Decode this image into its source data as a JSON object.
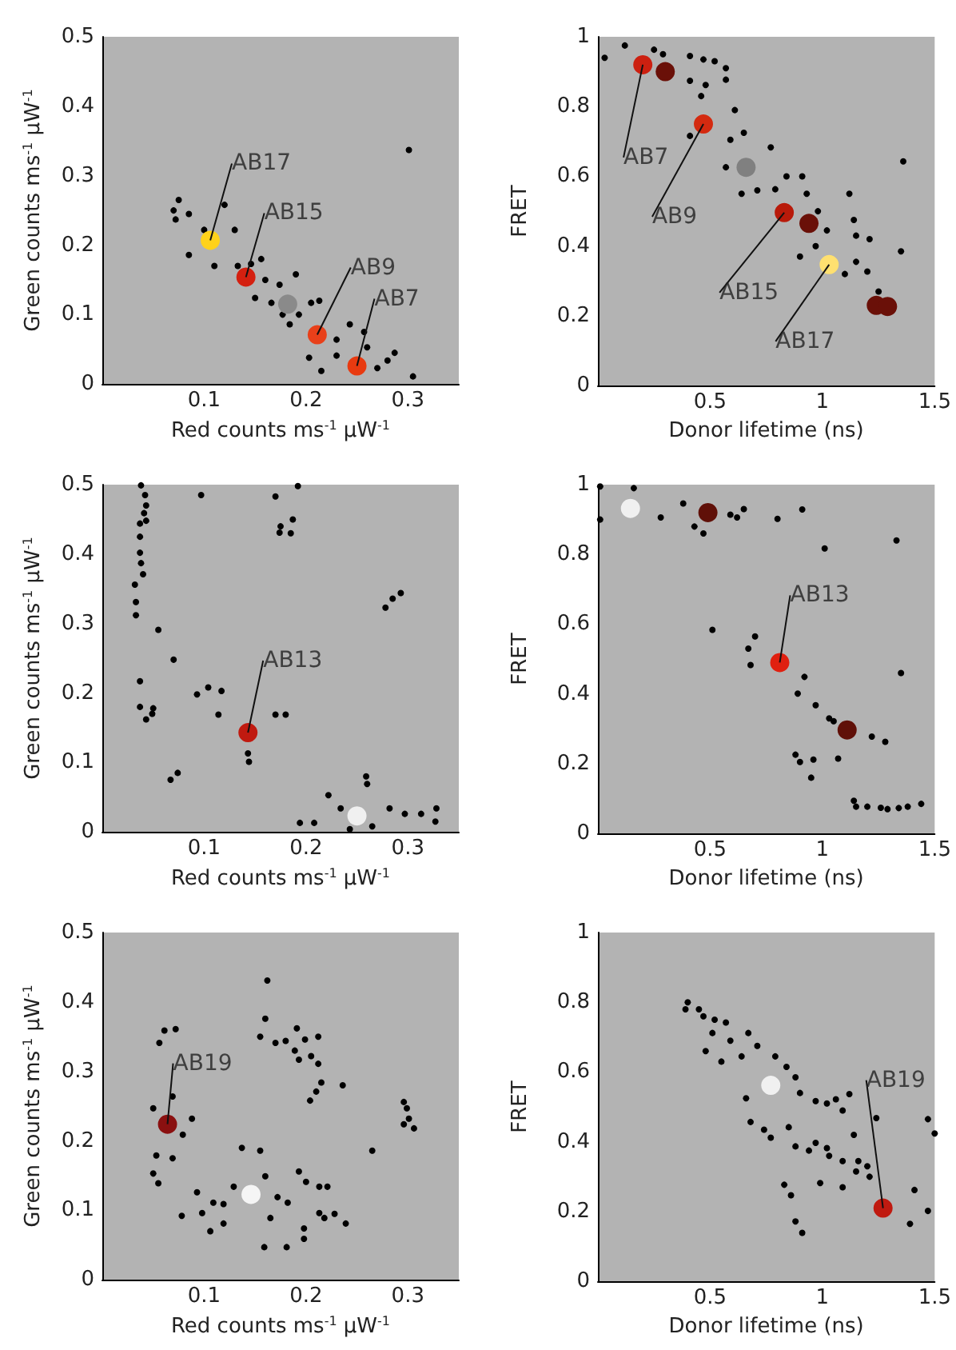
{
  "chart_data": [
    {
      "type": "scatter",
      "xlabel": "Red counts ms$^{-1}$ µW$^{-1}$",
      "ylabel": "Green counts ms$^{-1}$ µW$^{-1}$",
      "xlim": [
        0,
        0.35
      ],
      "ylim": [
        0,
        0.5
      ],
      "xticks": [
        0.1,
        0.2,
        0.3
      ],
      "yticks": [
        0,
        0.1,
        0.2,
        0.3,
        0.4,
        0.5
      ],
      "grid": false,
      "marker": "circle",
      "series": [
        {
          "color": "#000000",
          "x": [
            0.075,
            0.07,
            0.072,
            0.085,
            0.1,
            0.12,
            0.13,
            0.085,
            0.11,
            0.133,
            0.146,
            0.156,
            0.16,
            0.174,
            0.19,
            0.15,
            0.166,
            0.205,
            0.213,
            0.193,
            0.177,
            0.184,
            0.23,
            0.243,
            0.257,
            0.203,
            0.215,
            0.23,
            0.26,
            0.28,
            0.287,
            0.27,
            0.305,
            0.301
          ],
          "values": [
            0.265,
            0.25,
            0.237,
            0.245,
            0.222,
            0.258,
            0.222,
            0.186,
            0.17,
            0.17,
            0.173,
            0.18,
            0.15,
            0.143,
            0.158,
            0.124,
            0.117,
            0.117,
            0.12,
            0.1,
            0.1,
            0.086,
            0.064,
            0.086,
            0.075,
            0.038,
            0.019,
            0.041,
            0.053,
            0.034,
            0.045,
            0.023,
            0.011,
            0.337
          ]
        },
        {
          "colors": [
            "#ffd21a",
            "#d42010",
            "#8a8a8a",
            "#e8401a",
            "#e83a10"
          ],
          "x": [
            0.106,
            0.141,
            0.182,
            0.211,
            0.25
          ],
          "values": [
            0.207,
            0.154,
            0.115,
            0.071,
            0.026
          ]
        }
      ],
      "annotations": [
        {
          "text": "AB17",
          "x": 0.106,
          "y": 0.207
        },
        {
          "text": "AB15",
          "x": 0.141,
          "y": 0.154
        },
        {
          "text": "AB9",
          "x": 0.211,
          "y": 0.071
        },
        {
          "text": "AB7",
          "x": 0.25,
          "y": 0.026
        }
      ]
    },
    {
      "type": "scatter",
      "xlabel": "Donor lifetime (ns)",
      "ylabel": "FRET",
      "xlim": [
        0,
        1.5
      ],
      "ylim": [
        0,
        1
      ],
      "xticks": [
        0.5,
        1,
        1.5
      ],
      "yticks": [
        0,
        0.2,
        0.4,
        0.6,
        0.8,
        1
      ],
      "grid": false,
      "marker": "circle",
      "series": [
        {
          "color": "#000000",
          "x": [
            0.03,
            0.12,
            0.25,
            0.29,
            0.41,
            0.47,
            0.52,
            0.57,
            0.41,
            0.48,
            0.57,
            0.46,
            0.61,
            0.41,
            0.59,
            0.65,
            0.77,
            0.57,
            0.64,
            0.71,
            0.79,
            0.84,
            0.91,
            0.93,
            0.98,
            1.12,
            1.14,
            1.15,
            1.21,
            1.02,
            0.9,
            1.1,
            1.2,
            1.25,
            1.36,
            1.35,
            0.97,
            1.15
          ],
          "values": [
            0.94,
            0.975,
            0.963,
            0.95,
            0.945,
            0.935,
            0.93,
            0.91,
            0.874,
            0.862,
            0.877,
            0.83,
            0.79,
            0.716,
            0.705,
            0.725,
            0.683,
            0.626,
            0.55,
            0.56,
            0.563,
            0.6,
            0.6,
            0.55,
            0.5,
            0.55,
            0.475,
            0.43,
            0.42,
            0.445,
            0.37,
            0.32,
            0.327,
            0.27,
            0.643,
            0.385,
            0.4,
            0.355
          ]
        },
        {
          "colors": [
            "#cc2010",
            "#d42a10",
            "#808080",
            "#b81a0a",
            "#ffe070",
            "#6a1008",
            "#6a1008",
            "#6a1008",
            "#6a1008"
          ],
          "x": [
            0.2,
            0.47,
            0.66,
            0.83,
            1.03,
            0.3,
            0.94,
            1.24,
            1.29
          ],
          "values": [
            0.92,
            0.75,
            0.626,
            0.496,
            0.347,
            0.9,
            0.465,
            0.23,
            0.227
          ]
        }
      ],
      "annotations": [
        {
          "text": "AB7",
          "x": 0.2,
          "y": 0.92
        },
        {
          "text": "AB9",
          "x": 0.47,
          "y": 0.75
        },
        {
          "text": "AB15",
          "x": 0.83,
          "y": 0.496
        },
        {
          "text": "AB17",
          "x": 1.03,
          "y": 0.347
        }
      ]
    },
    {
      "type": "scatter",
      "xlabel": "Red counts ms$^{-1}$ µW$^{-1}$",
      "ylabel": "Green counts ms$^{-1}$ µW$^{-1}$",
      "xlim": [
        0,
        0.35
      ],
      "ylim": [
        0,
        0.5
      ],
      "xticks": [
        0.1,
        0.2,
        0.3
      ],
      "yticks": [
        0,
        0.1,
        0.2,
        0.3,
        0.4,
        0.5
      ],
      "grid": false,
      "marker": "circle",
      "series": [
        {
          "color": "#000000",
          "x": [
            0.038,
            0.042,
            0.043,
            0.041,
            0.037,
            0.043,
            0.037,
            0.037,
            0.038,
            0.04,
            0.032,
            0.033,
            0.033,
            0.055,
            0.037,
            0.037,
            0.043,
            0.05,
            0.049,
            0.07,
            0.067,
            0.074,
            0.097,
            0.093,
            0.104,
            0.117,
            0.114,
            0.143,
            0.144,
            0.17,
            0.18,
            0.17,
            0.192,
            0.175,
            0.174,
            0.187,
            0.185,
            0.278,
            0.285,
            0.293,
            0.222,
            0.259,
            0.26,
            0.194,
            0.208,
            0.234,
            0.282,
            0.297,
            0.313,
            0.328,
            0.327,
            0.265,
            0.243
          ],
          "values": [
            0.499,
            0.485,
            0.47,
            0.459,
            0.444,
            0.448,
            0.425,
            0.402,
            0.387,
            0.371,
            0.356,
            0.331,
            0.312,
            0.291,
            0.217,
            0.18,
            0.162,
            0.178,
            0.17,
            0.248,
            0.075,
            0.085,
            0.485,
            0.198,
            0.208,
            0.203,
            0.169,
            0.113,
            0.101,
            0.169,
            0.169,
            0.483,
            0.498,
            0.44,
            0.431,
            0.45,
            0.43,
            0.323,
            0.336,
            0.344,
            0.053,
            0.08,
            0.069,
            0.013,
            0.013,
            0.034,
            0.034,
            0.026,
            0.026,
            0.034,
            0.015,
            0.008,
            0.004
          ]
        },
        {
          "colors": [
            "#c01a10",
            "#f0f0f0"
          ],
          "x": [
            0.143,
            0.25
          ],
          "values": [
            0.143,
            0.023
          ]
        }
      ],
      "annotations": [
        {
          "text": "AB13",
          "x": 0.143,
          "y": 0.143
        }
      ]
    },
    {
      "type": "scatter",
      "xlabel": "Donor lifetime (ns)",
      "ylabel": "FRET",
      "xlim": [
        0,
        1.5
      ],
      "ylim": [
        0,
        1
      ],
      "xticks": [
        0.5,
        1,
        1.5
      ],
      "yticks": [
        0,
        0.2,
        0.4,
        0.6,
        0.8,
        1
      ],
      "grid": false,
      "marker": "circle",
      "series": [
        {
          "color": "#000000",
          "x": [
            0.01,
            0.01,
            0.16,
            0.28,
            0.38,
            0.43,
            0.47,
            0.59,
            0.62,
            0.65,
            0.8,
            0.91,
            1.01,
            1.33,
            0.51,
            0.7,
            0.67,
            0.68,
            0.92,
            0.89,
            0.97,
            1.03,
            1.05,
            0.88,
            0.9,
            0.96,
            0.95,
            1.07,
            1.22,
            1.28,
            1.35,
            1.14,
            1.15,
            1.2,
            1.26,
            1.29,
            1.34,
            1.38,
            1.44
          ],
          "values": [
            0.995,
            0.9,
            0.99,
            0.906,
            0.946,
            0.88,
            0.86,
            0.914,
            0.906,
            0.93,
            0.902,
            0.929,
            0.817,
            0.84,
            0.584,
            0.565,
            0.53,
            0.483,
            0.449,
            0.401,
            0.368,
            0.33,
            0.322,
            0.226,
            0.205,
            0.212,
            0.16,
            0.215,
            0.278,
            0.263,
            0.46,
            0.094,
            0.077,
            0.077,
            0.074,
            0.07,
            0.073,
            0.077,
            0.085
          ]
        },
        {
          "colors": [
            "#f0f0f0",
            "#e02010",
            "#601008",
            "#601008"
          ],
          "x": [
            0.145,
            0.81,
            1.11,
            0.49
          ],
          "values": [
            0.932,
            0.49,
            0.297,
            0.92
          ]
        }
      ],
      "annotations": [
        {
          "text": "AB13",
          "x": 0.81,
          "y": 0.49
        }
      ]
    },
    {
      "type": "scatter",
      "xlabel": "Red counts ms$^{-1}$ µW$^{-1}$",
      "ylabel": "Green counts ms$^{-1}$ µW$^{-1}$",
      "xlim": [
        0,
        0.35
      ],
      "ylim": [
        0,
        0.5
      ],
      "xticks": [
        0.1,
        0.2,
        0.3
      ],
      "yticks": [
        0,
        0.1,
        0.2,
        0.3,
        0.4,
        0.5
      ],
      "grid": false,
      "marker": "circle",
      "series": [
        {
          "color": "#000000",
          "x": [
            0.05,
            0.069,
            0.053,
            0.069,
            0.079,
            0.088,
            0.05,
            0.055,
            0.056,
            0.061,
            0.072,
            0.078,
            0.093,
            0.106,
            0.098,
            0.119,
            0.137,
            0.155,
            0.16,
            0.172,
            0.182,
            0.193,
            0.2,
            0.213,
            0.221,
            0.213,
            0.218,
            0.228,
            0.239,
            0.198,
            0.181,
            0.159,
            0.119,
            0.129,
            0.165,
            0.109,
            0.198,
            0.162,
            0.16,
            0.155,
            0.17,
            0.18,
            0.189,
            0.191,
            0.199,
            0.193,
            0.205,
            0.212,
            0.212,
            0.215,
            0.21,
            0.204,
            0.236,
            0.265,
            0.296,
            0.299,
            0.296,
            0.306,
            0.301
          ],
          "values": [
            0.247,
            0.264,
            0.179,
            0.175,
            0.209,
            0.232,
            0.153,
            0.139,
            0.341,
            0.359,
            0.361,
            0.092,
            0.126,
            0.07,
            0.096,
            0.109,
            0.19,
            0.186,
            0.149,
            0.119,
            0.111,
            0.156,
            0.141,
            0.134,
            0.134,
            0.096,
            0.089,
            0.095,
            0.081,
            0.059,
            0.047,
            0.047,
            0.081,
            0.134,
            0.089,
            0.111,
            0.074,
            0.431,
            0.376,
            0.35,
            0.341,
            0.344,
            0.33,
            0.362,
            0.346,
            0.317,
            0.322,
            0.35,
            0.311,
            0.284,
            0.271,
            0.258,
            0.28,
            0.186,
            0.256,
            0.247,
            0.224,
            0.218,
            0.232
          ]
        },
        {
          "colors": [
            "#8a1010",
            "#f5f5f5"
          ],
          "x": [
            0.064,
            0.146
          ],
          "values": [
            0.224,
            0.123
          ]
        }
      ],
      "annotations": [
        {
          "text": "AB19",
          "x": 0.064,
          "y": 0.224
        }
      ]
    },
    {
      "type": "scatter",
      "xlabel": "Donor lifetime (ns)",
      "ylabel": "FRET",
      "xlim": [
        0,
        1.5
      ],
      "ylim": [
        0,
        1
      ],
      "xticks": [
        0.5,
        1,
        1.5
      ],
      "yticks": [
        0,
        0.2,
        0.4,
        0.6,
        0.8,
        1
      ],
      "grid": false,
      "marker": "circle",
      "series": [
        {
          "color": "#000000",
          "x": [
            0.4,
            0.39,
            0.45,
            0.47,
            0.52,
            0.57,
            0.51,
            0.59,
            0.67,
            0.48,
            0.55,
            0.64,
            0.71,
            0.79,
            0.84,
            0.88,
            0.9,
            0.97,
            1.02,
            1.06,
            1.12,
            1.24,
            1.09,
            0.66,
            0.68,
            0.74,
            0.77,
            0.85,
            0.88,
            0.94,
            0.97,
            1.02,
            1.03,
            1.09,
            1.14,
            1.16,
            1.2,
            1.15,
            1.21,
            1.09,
            0.99,
            0.83,
            0.86,
            0.88,
            0.91,
            1.41,
            1.47,
            1.5,
            1.47,
            1.39
          ],
          "values": [
            0.8,
            0.78,
            0.78,
            0.76,
            0.75,
            0.742,
            0.712,
            0.69,
            0.712,
            0.66,
            0.63,
            0.645,
            0.675,
            0.645,
            0.615,
            0.585,
            0.54,
            0.517,
            0.51,
            0.522,
            0.537,
            0.468,
            0.49,
            0.525,
            0.457,
            0.435,
            0.412,
            0.442,
            0.387,
            0.375,
            0.397,
            0.382,
            0.36,
            0.345,
            0.42,
            0.345,
            0.33,
            0.315,
            0.3,
            0.27,
            0.282,
            0.277,
            0.247,
            0.172,
            0.139,
            0.262,
            0.465,
            0.424,
            0.202,
            0.165
          ]
        },
        {
          "colors": [
            "#f0f0f0",
            "#c01a10"
          ],
          "x": [
            0.77,
            1.27
          ],
          "values": [
            0.562,
            0.21
          ]
        }
      ],
      "annotations": [
        {
          "text": "AB19",
          "x": 1.27,
          "y": 0.21
        }
      ]
    }
  ]
}
